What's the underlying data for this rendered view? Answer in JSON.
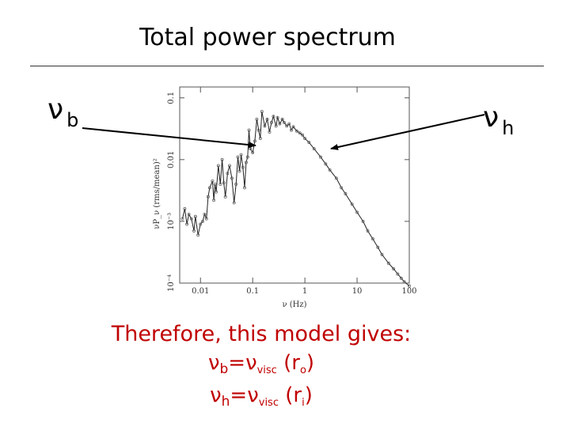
{
  "slide": {
    "title": "Total power spectrum",
    "left_marker": {
      "symbol": "ν",
      "subscript": "b"
    },
    "right_marker": {
      "symbol": "ν",
      "subscript": "h"
    },
    "conclusion": {
      "intro": "Therefore, this model gives:",
      "eq1": {
        "lhs": "ν",
        "lhs_sub": "b",
        "eq": "=",
        "rhs": "ν",
        "rhs_sub": "visc",
        "arg": "(r",
        "arg_sub": "o",
        "close": ")"
      },
      "eq2": {
        "lhs": "ν",
        "lhs_sub": "h",
        "eq": "=",
        "rhs": "ν",
        "rhs_sub": "visc",
        "arg": "(r",
        "arg_sub": "i",
        "close": ")"
      }
    }
  },
  "colors": {
    "conclusion_text": "#c00000",
    "arrow": "#000000",
    "plot_line": "#222222"
  },
  "chart_data": {
    "type": "line",
    "x_scale": "log",
    "y_scale": "log",
    "xlabel": "ν (Hz)",
    "ylabel": "νP_ν (rms/mean)²",
    "xlim": [
      0.004,
      100
    ],
    "ylim": [
      0.0001,
      0.15
    ],
    "x_ticks": [
      {
        "value": 0.01,
        "label": "0.01"
      },
      {
        "value": 0.1,
        "label": "0.1"
      },
      {
        "value": 1,
        "label": "1"
      },
      {
        "value": 10,
        "label": "10"
      },
      {
        "value": 100,
        "label": "100"
      }
    ],
    "y_ticks": [
      {
        "value": 0.0001,
        "label": "10⁻⁴"
      },
      {
        "value": 0.001,
        "label": "10⁻³"
      },
      {
        "value": 0.01,
        "label": "0.01"
      },
      {
        "value": 0.1,
        "label": "0.1"
      }
    ],
    "series": [
      {
        "x": [
          0.0045,
          0.005,
          0.0055,
          0.006,
          0.0067,
          0.0075,
          0.008,
          0.009,
          0.01,
          0.011,
          0.012,
          0.013,
          0.014,
          0.015,
          0.017,
          0.018,
          0.019,
          0.02,
          0.022,
          0.024,
          0.026,
          0.028,
          0.03,
          0.033,
          0.036,
          0.04,
          0.044,
          0.048,
          0.052,
          0.056,
          0.06,
          0.065,
          0.07,
          0.075,
          0.08,
          0.085,
          0.09,
          0.1,
          0.11,
          0.12,
          0.13,
          0.14,
          0.15,
          0.17,
          0.19,
          0.21,
          0.23,
          0.25,
          0.28,
          0.3,
          0.33,
          0.37,
          0.4,
          0.45,
          0.5,
          0.55,
          0.6,
          0.7,
          0.8,
          0.9,
          1.0,
          1.2,
          1.5,
          2,
          2.5,
          3,
          4,
          5,
          6,
          8,
          10,
          13,
          16,
          20,
          25,
          30,
          40,
          50,
          60,
          70,
          80,
          100
        ],
        "y": [
          0.0011,
          0.0016,
          0.0009,
          0.0013,
          0.0011,
          0.0007,
          0.0012,
          0.0006,
          0.0009,
          0.001,
          0.0013,
          0.0011,
          0.0025,
          0.0035,
          0.0045,
          0.0022,
          0.004,
          0.003,
          0.008,
          0.004,
          0.01,
          0.0042,
          0.0025,
          0.006,
          0.008,
          0.005,
          0.002,
          0.004,
          0.011,
          0.0065,
          0.012,
          0.0075,
          0.0035,
          0.009,
          0.011,
          0.03,
          0.015,
          0.013,
          0.02,
          0.045,
          0.03,
          0.022,
          0.06,
          0.035,
          0.045,
          0.028,
          0.04,
          0.05,
          0.035,
          0.048,
          0.038,
          0.045,
          0.04,
          0.035,
          0.038,
          0.03,
          0.034,
          0.029,
          0.027,
          0.025,
          0.022,
          0.019,
          0.015,
          0.011,
          0.0085,
          0.0068,
          0.005,
          0.0035,
          0.0028,
          0.0019,
          0.0014,
          0.001,
          0.0007,
          0.00052,
          0.00038,
          0.00029,
          0.00021,
          0.00017,
          0.00014,
          0.00012,
          0.000105,
          9e-05
        ]
      }
    ],
    "grid": false,
    "legend": "none"
  }
}
